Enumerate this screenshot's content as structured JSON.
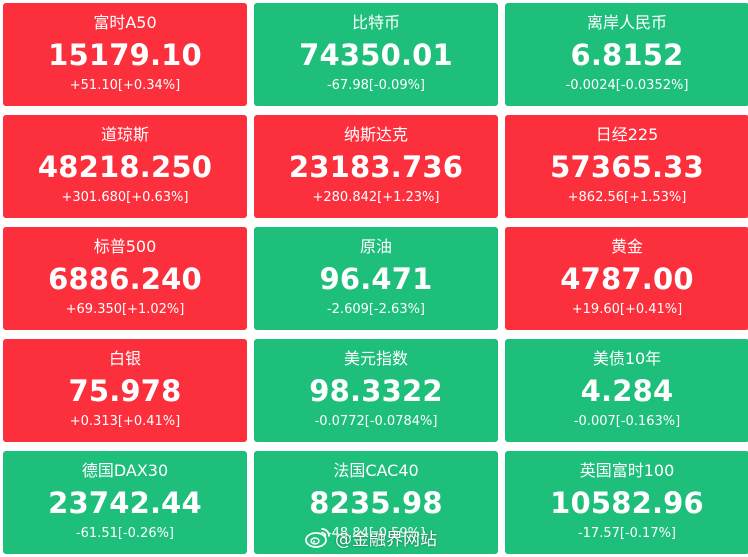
{
  "colors": {
    "up": "#fc2f3c",
    "down": "#1dbf7b",
    "text": "#ffffff"
  },
  "tiles": [
    {
      "name": "富时A50",
      "price": "15179.10",
      "change": "+51.10[+0.34%]",
      "trend": "up"
    },
    {
      "name": "比特币",
      "price": "74350.01",
      "change": "-67.98[-0.09%]",
      "trend": "down"
    },
    {
      "name": "离岸人民币",
      "price": "6.8152",
      "change": "-0.0024[-0.0352%]",
      "trend": "down"
    },
    {
      "name": "道琼斯",
      "price": "48218.250",
      "change": "+301.680[+0.63%]",
      "trend": "up"
    },
    {
      "name": "纳斯达克",
      "price": "23183.736",
      "change": "+280.842[+1.23%]",
      "trend": "up"
    },
    {
      "name": "日经225",
      "price": "57365.33",
      "change": "+862.56[+1.53%]",
      "trend": "up"
    },
    {
      "name": "标普500",
      "price": "6886.240",
      "change": "+69.350[+1.02%]",
      "trend": "up"
    },
    {
      "name": "原油",
      "price": "96.471",
      "change": "-2.609[-2.63%]",
      "trend": "down"
    },
    {
      "name": "黄金",
      "price": "4787.00",
      "change": "+19.60[+0.41%]",
      "trend": "up"
    },
    {
      "name": "白银",
      "price": "75.978",
      "change": "+0.313[+0.41%]",
      "trend": "up"
    },
    {
      "name": "美元指数",
      "price": "98.3322",
      "change": "-0.0772[-0.0784%]",
      "trend": "down"
    },
    {
      "name": "美债10年",
      "price": "4.284",
      "change": "-0.007[-0.163%]",
      "trend": "down"
    },
    {
      "name": "德国DAX30",
      "price": "23742.44",
      "change": "-61.51[-0.26%]",
      "trend": "down"
    },
    {
      "name": "法国CAC40",
      "price": "8235.98",
      "change": "-48.84[-0.59%]",
      "trend": "down"
    },
    {
      "name": "英国富时100",
      "price": "10582.96",
      "change": "-17.57[-0.17%]",
      "trend": "down"
    }
  ],
  "watermark": {
    "icon": "weibo-icon",
    "text": "@金融界网站"
  }
}
